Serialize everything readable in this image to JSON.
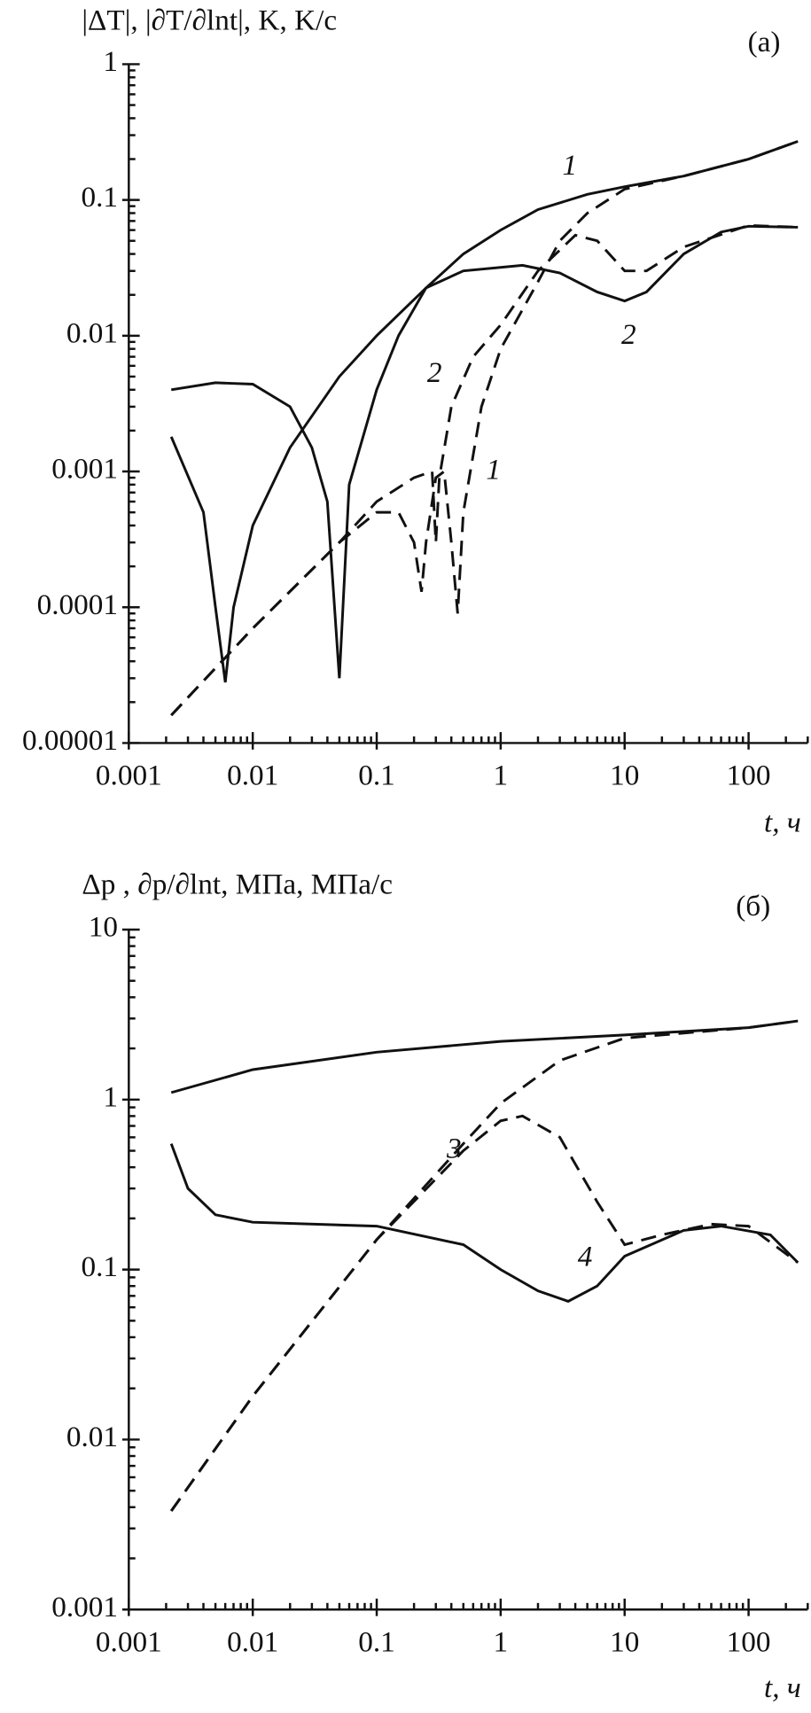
{
  "chart_data": [
    {
      "type": "line",
      "title": "(a)",
      "y_label": "|ΔT|, |∂T/∂lnt|, K, K/c",
      "x_label": "t, ч",
      "log_x": true,
      "log_y": true,
      "xlim": [
        0.001,
        300
      ],
      "xticks": [
        0.001,
        0.01,
        0.1,
        1,
        10,
        100
      ],
      "ylim": [
        1e-05,
        1
      ],
      "yticks": [
        1e-05,
        0.0001,
        0.001,
        0.01,
        0.1,
        1
      ],
      "series": [
        {
          "name": "1",
          "color": "#111111",
          "dash": false,
          "x": [
            0.0022,
            0.004,
            0.005,
            0.006,
            0.007,
            0.01,
            0.02,
            0.05,
            0.1,
            0.25,
            0.5,
            1,
            2,
            5,
            10,
            30,
            100,
            250
          ],
          "values": [
            0.0018,
            0.0005,
            0.0001,
            2.8e-05,
            0.0001,
            0.0004,
            0.0015,
            0.005,
            0.01,
            0.0225,
            0.04,
            0.06,
            0.085,
            0.11,
            0.125,
            0.15,
            0.2,
            0.27
          ]
        },
        {
          "name": "2",
          "color": "#111111",
          "dash": false,
          "x": [
            0.0022,
            0.005,
            0.01,
            0.02,
            0.03,
            0.04,
            0.05,
            0.06,
            0.1,
            0.15,
            0.25,
            0.5,
            1.5,
            3,
            6,
            10,
            15,
            30,
            60,
            100,
            250
          ],
          "values": [
            0.004,
            0.0045,
            0.0044,
            0.003,
            0.0015,
            0.0006,
            3e-05,
            0.0008,
            0.004,
            0.01,
            0.0225,
            0.03,
            0.033,
            0.029,
            0.021,
            0.018,
            0.021,
            0.04,
            0.058,
            0.064,
            0.063
          ]
        },
        {
          "name": "1",
          "color": "#111111",
          "dash": true,
          "x": [
            0.0022,
            0.01,
            0.05,
            0.1,
            0.15,
            0.2,
            0.23,
            0.25,
            0.3,
            0.35,
            0.4,
            0.45,
            0.5,
            0.7,
            1,
            2,
            3,
            5,
            10,
            30,
            100,
            250
          ],
          "values": [
            1.6e-05,
            7e-05,
            0.0003,
            0.0005,
            0.0005,
            0.0003,
            0.00013,
            0.0003,
            0.0009,
            0.001,
            0.0003,
            9e-05,
            0.0005,
            0.003,
            0.008,
            0.025,
            0.05,
            0.08,
            0.12,
            0.15,
            0.2,
            0.27
          ]
        },
        {
          "name": "2",
          "color": "#111111",
          "dash": true,
          "x": [
            0.0022,
            0.01,
            0.05,
            0.1,
            0.2,
            0.28,
            0.3,
            0.32,
            0.4,
            0.6,
            1,
            2,
            4,
            6,
            10,
            15,
            30,
            100,
            250
          ],
          "values": [
            1.6e-05,
            7e-05,
            0.0003,
            0.0006,
            0.0009,
            0.001,
            0.0003,
            0.0009,
            0.003,
            0.007,
            0.012,
            0.03,
            0.055,
            0.05,
            0.03,
            0.03,
            0.045,
            0.065,
            0.063
          ]
        }
      ]
    },
    {
      "type": "line",
      "title": "(б)",
      "y_label": "Δp , ∂p/∂lnt, MΠa, MΠa/c",
      "x_label": "t, ч",
      "log_x": true,
      "log_y": true,
      "xlim": [
        0.001,
        300
      ],
      "xticks": [
        0.001,
        0.01,
        0.1,
        1,
        10,
        100
      ],
      "ylim": [
        0.001,
        10
      ],
      "yticks": [
        0.001,
        0.01,
        0.1,
        1,
        10
      ],
      "series": [
        {
          "color": "#111111",
          "dash": false,
          "x": [
            0.0022,
            0.01,
            0.1,
            1,
            10,
            100,
            250
          ],
          "values": [
            1.1,
            1.5,
            1.9,
            2.2,
            2.4,
            2.65,
            2.9
          ]
        },
        {
          "name": "3",
          "color": "#111111",
          "dash": true,
          "x": [
            0.0022,
            0.01,
            0.1,
            0.5,
            1,
            3,
            10,
            100,
            250
          ],
          "values": [
            0.0038,
            0.018,
            0.15,
            0.55,
            0.95,
            1.7,
            2.3,
            2.65,
            2.9
          ]
        },
        {
          "name": "4",
          "color": "#111111",
          "dash": false,
          "x": [
            0.0022,
            0.003,
            0.005,
            0.01,
            0.1,
            0.5,
            1,
            2,
            3.5,
            6,
            10,
            30,
            60,
            150,
            250
          ],
          "values": [
            0.55,
            0.3,
            0.21,
            0.19,
            0.18,
            0.14,
            0.1,
            0.075,
            0.065,
            0.08,
            0.12,
            0.17,
            0.18,
            0.16,
            0.11
          ]
        },
        {
          "color": "#111111",
          "dash": true,
          "x": [
            0.0022,
            0.01,
            0.1,
            0.5,
            1,
            1.5,
            3,
            6,
            10,
            20,
            50,
            100,
            250
          ],
          "values": [
            0.0038,
            0.018,
            0.15,
            0.5,
            0.75,
            0.8,
            0.6,
            0.25,
            0.14,
            0.16,
            0.185,
            0.18,
            0.11
          ]
        }
      ]
    }
  ]
}
